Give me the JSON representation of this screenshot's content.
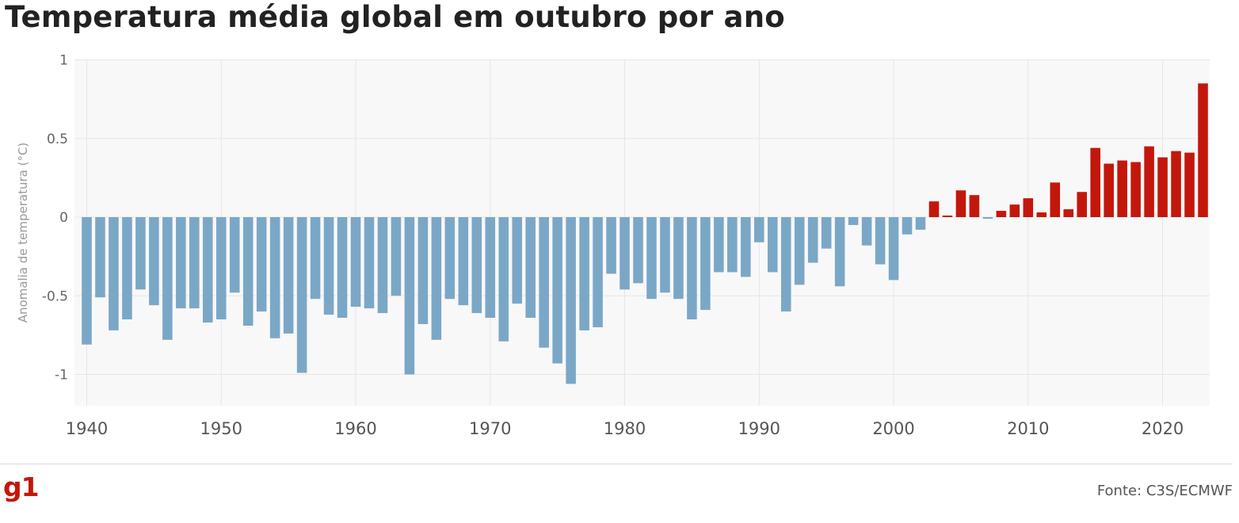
{
  "header": {
    "title": "Temperatura média global em outubro por ano"
  },
  "footer": {
    "logo_text": "g1",
    "source": "Fonte: C3S/ECMWF"
  },
  "colors": {
    "negative": "#7ba7c7",
    "positive": "#c4170c",
    "logo": "#c4170c"
  },
  "chart_data": {
    "type": "bar",
    "title": "Temperatura média global em outubro por ano",
    "xlabel": "",
    "ylabel": "Anomalia de temperatura (°C)",
    "ylim": [
      -1.2,
      1
    ],
    "xlim": [
      1940,
      2023
    ],
    "y_ticks": [
      1,
      0.5,
      0,
      -0.5,
      -1
    ],
    "y_tick_labels": [
      "1",
      "0.5",
      "0",
      "-0.5",
      "-1"
    ],
    "x_ticks": [
      1940,
      1950,
      1960,
      1970,
      1980,
      1990,
      2000,
      2010,
      2020
    ],
    "x_tick_labels": [
      "1940",
      "1950",
      "1960",
      "1970",
      "1980",
      "1990",
      "2000",
      "2010",
      "2020"
    ],
    "grid": true,
    "x": [
      1940,
      1941,
      1942,
      1943,
      1944,
      1945,
      1946,
      1947,
      1948,
      1949,
      1950,
      1951,
      1952,
      1953,
      1954,
      1955,
      1956,
      1957,
      1958,
      1959,
      1960,
      1961,
      1962,
      1963,
      1964,
      1965,
      1966,
      1967,
      1968,
      1969,
      1970,
      1971,
      1972,
      1973,
      1974,
      1975,
      1976,
      1977,
      1978,
      1979,
      1980,
      1981,
      1982,
      1983,
      1984,
      1985,
      1986,
      1987,
      1988,
      1989,
      1990,
      1991,
      1992,
      1993,
      1994,
      1995,
      1996,
      1997,
      1998,
      1999,
      2000,
      2001,
      2002,
      2003,
      2004,
      2005,
      2006,
      2007,
      2008,
      2009,
      2010,
      2011,
      2012,
      2013,
      2014,
      2015,
      2016,
      2017,
      2018,
      2019,
      2020,
      2021,
      2022,
      2023
    ],
    "values": [
      -0.81,
      -0.51,
      -0.72,
      -0.65,
      -0.46,
      -0.56,
      -0.78,
      -0.58,
      -0.58,
      -0.67,
      -0.65,
      -0.48,
      -0.69,
      -0.6,
      -0.77,
      -0.74,
      -0.99,
      -0.52,
      -0.62,
      -0.64,
      -0.57,
      -0.58,
      -0.61,
      -0.5,
      -1.0,
      -0.68,
      -0.78,
      -0.52,
      -0.56,
      -0.61,
      -0.64,
      -0.79,
      -0.55,
      -0.64,
      -0.83,
      -0.93,
      -1.06,
      -0.72,
      -0.7,
      -0.36,
      -0.46,
      -0.42,
      -0.52,
      -0.48,
      -0.52,
      -0.65,
      -0.59,
      -0.35,
      -0.35,
      -0.38,
      -0.16,
      -0.35,
      -0.6,
      -0.43,
      -0.29,
      -0.2,
      -0.44,
      -0.05,
      -0.18,
      -0.3,
      -0.4,
      -0.11,
      -0.08,
      0.1,
      0.01,
      0.17,
      0.14,
      -0.01,
      0.04,
      0.08,
      0.12,
      0.03,
      0.22,
      0.05,
      0.16,
      0.44,
      0.34,
      0.36,
      0.35,
      0.45,
      0.38,
      0.42,
      0.41,
      0.85
    ]
  }
}
